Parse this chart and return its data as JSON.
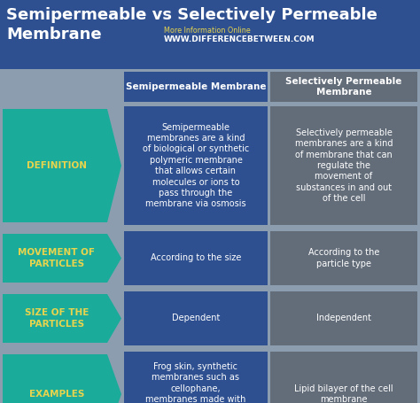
{
  "title_line1": "Semipermeable vs Selectively Permeable",
  "title_line2": "Membrane",
  "subtitle_left": "More Information Online",
  "subtitle_right": "WWW.DIFFERENCEBETWEEN.COM",
  "col1_header": "Semipermeable Membrane",
  "col2_header": "Selectively Permeable\nMembrane",
  "bg_color": "#8c9db0",
  "title_bg": "#2e5090",
  "col1_cell_bg": "#2e5090",
  "col2_cell_bg": "#636d7a",
  "arrow_bg": "#1aab9b",
  "arrow_text_color": "#e8d44d",
  "cell_text_color": "#ffffff",
  "header_text_color": "#ffffff",
  "title_text_color": "#ffffff",
  "rows": [
    {
      "label": "DEFINITION",
      "col1": "Semipermeable\nmembranes are a kind\nof biological or synthetic\npolymeric membrane\nthat allows certain\nmolecules or ions to\npass through the\nmembrane via osmosis",
      "col2": "Selectively permeable\nmembranes are a kind\nof membrane that can\nregulate the\nmovement of\nsubstances in and out\nof the cell"
    },
    {
      "label": "MOVEMENT OF\nPARTICLES",
      "col1": "According to the size",
      "col2": "According to the\nparticle type"
    },
    {
      "label": "SIZE OF THE\nPARTICLES",
      "col1": "Dependent",
      "col2": "Independent"
    },
    {
      "label": "EXAMPLES",
      "col1": "Frog skin, synthetic\nmembranes such as\ncellophane,\nmembranes made with\npolyvinyl alcohol,\npolyurethane, etc.",
      "col2": "Lipid bilayer of the cell\nmembrane"
    }
  ]
}
